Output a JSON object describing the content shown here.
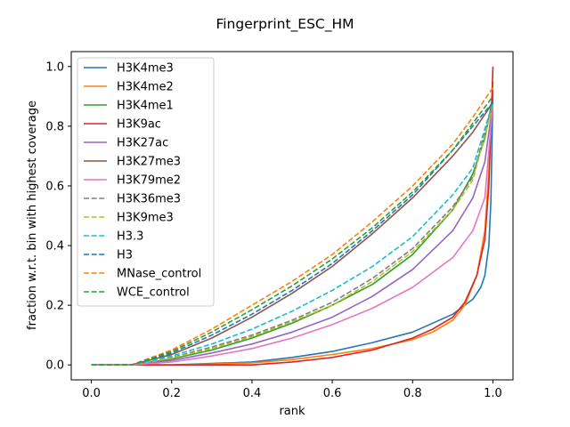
{
  "chart_data": {
    "type": "line",
    "title": "Fingerprint_ESC_HM",
    "xlabel": "rank",
    "ylabel": "fraction w.r.t. bin with highest coverage",
    "xlim": [
      -0.05,
      1.05
    ],
    "ylim": [
      -0.05,
      1.05
    ],
    "xticks": [
      "0.0",
      "0.2",
      "0.4",
      "0.6",
      "0.8",
      "1.0"
    ],
    "yticks": [
      "0.0",
      "0.2",
      "0.4",
      "0.6",
      "0.8",
      "1.0"
    ],
    "grid": false,
    "legend_position": "upper-left",
    "series": [
      {
        "name": "H3K4me3",
        "color": "#1f77b4",
        "dash": "solid",
        "x": [
          0,
          0.2,
          0.3,
          0.4,
          0.5,
          0.6,
          0.7,
          0.8,
          0.85,
          0.9,
          0.95,
          0.97,
          0.98,
          0.99,
          0.995,
          1.0
        ],
        "y": [
          0,
          0.0,
          0.005,
          0.01,
          0.025,
          0.045,
          0.075,
          0.11,
          0.14,
          0.17,
          0.22,
          0.26,
          0.3,
          0.4,
          0.55,
          0.92
        ]
      },
      {
        "name": "H3K4me2",
        "color": "#ff7f0e",
        "dash": "solid",
        "x": [
          0,
          0.2,
          0.3,
          0.4,
          0.5,
          0.6,
          0.7,
          0.8,
          0.85,
          0.9,
          0.93,
          0.96,
          0.98,
          0.99,
          1.0
        ],
        "y": [
          0,
          0.0,
          0.003,
          0.007,
          0.018,
          0.035,
          0.055,
          0.085,
          0.11,
          0.15,
          0.2,
          0.3,
          0.45,
          0.65,
          0.95
        ]
      },
      {
        "name": "H3K4me1",
        "color": "#2ca02c",
        "dash": "solid",
        "x": [
          0,
          0.1,
          0.2,
          0.3,
          0.4,
          0.5,
          0.6,
          0.7,
          0.8,
          0.9,
          0.95,
          0.98,
          1.0
        ],
        "y": [
          0,
          0.0,
          0.02,
          0.05,
          0.09,
          0.14,
          0.2,
          0.27,
          0.37,
          0.52,
          0.64,
          0.76,
          0.9
        ]
      },
      {
        "name": "H3K9ac",
        "color": "#d62728",
        "dash": "solid",
        "x": [
          0,
          0.2,
          0.3,
          0.4,
          0.5,
          0.6,
          0.7,
          0.8,
          0.85,
          0.9,
          0.93,
          0.96,
          0.98,
          0.99,
          1.0
        ],
        "y": [
          0,
          0.0,
          0.0,
          0.0,
          0.01,
          0.025,
          0.05,
          0.09,
          0.12,
          0.16,
          0.21,
          0.3,
          0.42,
          0.6,
          1.0
        ]
      },
      {
        "name": "H3K27ac",
        "color": "#9467bd",
        "dash": "solid",
        "x": [
          0,
          0.1,
          0.2,
          0.3,
          0.4,
          0.5,
          0.6,
          0.7,
          0.8,
          0.9,
          0.95,
          0.98,
          1.0
        ],
        "y": [
          0,
          0.0,
          0.015,
          0.04,
          0.07,
          0.11,
          0.16,
          0.23,
          0.32,
          0.45,
          0.56,
          0.68,
          0.88
        ]
      },
      {
        "name": "H3K27me3",
        "color": "#8c564b",
        "dash": "solid",
        "x": [
          0,
          0.1,
          0.2,
          0.3,
          0.4,
          0.5,
          0.6,
          0.7,
          0.8,
          0.9,
          0.95,
          1.0
        ],
        "y": [
          0,
          0.0,
          0.035,
          0.09,
          0.16,
          0.24,
          0.33,
          0.44,
          0.56,
          0.7,
          0.78,
          0.88
        ]
      },
      {
        "name": "H3K79me2",
        "color": "#e377c2",
        "dash": "solid",
        "x": [
          0,
          0.1,
          0.2,
          0.3,
          0.4,
          0.5,
          0.6,
          0.7,
          0.8,
          0.9,
          0.95,
          0.98,
          1.0
        ],
        "y": [
          0,
          0.0,
          0.01,
          0.03,
          0.055,
          0.09,
          0.135,
          0.19,
          0.26,
          0.36,
          0.45,
          0.56,
          0.88
        ]
      },
      {
        "name": "H3K36me3",
        "color": "#7f7f7f",
        "dash": "dashed",
        "x": [
          0,
          0.1,
          0.2,
          0.3,
          0.4,
          0.5,
          0.6,
          0.7,
          0.8,
          0.9,
          0.95,
          1.0
        ],
        "y": [
          0,
          0.0,
          0.025,
          0.06,
          0.1,
          0.15,
          0.21,
          0.29,
          0.39,
          0.53,
          0.63,
          0.88
        ]
      },
      {
        "name": "H3K9me3",
        "color": "#bcbd22",
        "dash": "dashed",
        "x": [
          0,
          0.1,
          0.2,
          0.3,
          0.4,
          0.5,
          0.6,
          0.7,
          0.8,
          0.9,
          0.95,
          1.0
        ],
        "y": [
          0,
          0.0,
          0.023,
          0.055,
          0.095,
          0.145,
          0.2,
          0.28,
          0.38,
          0.52,
          0.62,
          0.87
        ]
      },
      {
        "name": "H3.3",
        "color": "#17becf",
        "dash": "dashed",
        "x": [
          0,
          0.1,
          0.2,
          0.3,
          0.4,
          0.5,
          0.6,
          0.7,
          0.8,
          0.9,
          0.95,
          1.0
        ],
        "y": [
          0,
          0.0,
          0.03,
          0.07,
          0.12,
          0.18,
          0.25,
          0.33,
          0.43,
          0.57,
          0.66,
          0.88
        ]
      },
      {
        "name": "H3",
        "color": "#1f77b4",
        "dash": "dashed",
        "x": [
          0,
          0.1,
          0.2,
          0.3,
          0.4,
          0.5,
          0.6,
          0.7,
          0.8,
          0.9,
          0.95,
          1.0
        ],
        "y": [
          0,
          0.0,
          0.04,
          0.1,
          0.17,
          0.25,
          0.34,
          0.45,
          0.57,
          0.72,
          0.8,
          0.88
        ]
      },
      {
        "name": "MNase_control",
        "color": "#ff7f0e",
        "dash": "dashed",
        "x": [
          0,
          0.1,
          0.2,
          0.3,
          0.4,
          0.5,
          0.6,
          0.7,
          0.8,
          0.9,
          0.95,
          1.0
        ],
        "y": [
          0,
          0.0,
          0.05,
          0.12,
          0.2,
          0.28,
          0.37,
          0.48,
          0.6,
          0.74,
          0.83,
          0.93
        ]
      },
      {
        "name": "WCE_control",
        "color": "#2ca02c",
        "dash": "dashed",
        "x": [
          0,
          0.1,
          0.2,
          0.3,
          0.4,
          0.5,
          0.6,
          0.7,
          0.8,
          0.9,
          0.95,
          1.0
        ],
        "y": [
          0,
          0.0,
          0.045,
          0.11,
          0.185,
          0.265,
          0.355,
          0.46,
          0.58,
          0.72,
          0.81,
          0.9
        ]
      }
    ]
  }
}
